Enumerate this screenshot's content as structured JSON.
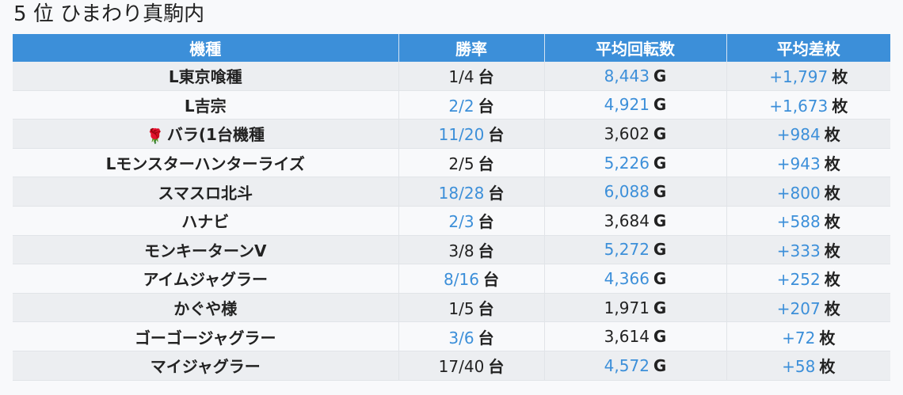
{
  "header": {
    "rank": "5",
    "rank_suffix": "位",
    "store_name": "ひまわり真駒内"
  },
  "table": {
    "columns": [
      "機種",
      "勝率",
      "平均回転数",
      "平均差枚"
    ],
    "unit_win": "台",
    "unit_spins": "G",
    "unit_diff": "枚",
    "accent_color": "#3c8fd9",
    "rows": [
      {
        "name": "L東京喰種",
        "icon": "",
        "win": "1/4",
        "win_hl": false,
        "spins": "8,443",
        "spins_hl": true,
        "diff": "+1,797",
        "diff_hl": true
      },
      {
        "name": "L吉宗",
        "icon": "",
        "win": "2/2",
        "win_hl": true,
        "spins": "4,921",
        "spins_hl": true,
        "diff": "+1,673",
        "diff_hl": true
      },
      {
        "name": "バラ(1台機種",
        "icon": "rose-icon",
        "win": "11/20",
        "win_hl": true,
        "spins": "3,602",
        "spins_hl": false,
        "diff": "+984",
        "diff_hl": true
      },
      {
        "name": "Lモンスターハンターライズ",
        "icon": "",
        "win": "2/5",
        "win_hl": false,
        "spins": "5,226",
        "spins_hl": true,
        "diff": "+943",
        "diff_hl": true
      },
      {
        "name": "スマスロ北斗",
        "icon": "",
        "win": "18/28",
        "win_hl": true,
        "spins": "6,088",
        "spins_hl": true,
        "diff": "+800",
        "diff_hl": true
      },
      {
        "name": "ハナビ",
        "icon": "",
        "win": "2/3",
        "win_hl": true,
        "spins": "3,684",
        "spins_hl": false,
        "diff": "+588",
        "diff_hl": true
      },
      {
        "name": "モンキーターンV",
        "icon": "",
        "win": "3/8",
        "win_hl": false,
        "spins": "5,272",
        "spins_hl": true,
        "diff": "+333",
        "diff_hl": true
      },
      {
        "name": "アイムジャグラー",
        "icon": "",
        "win": "8/16",
        "win_hl": true,
        "spins": "4,366",
        "spins_hl": true,
        "diff": "+252",
        "diff_hl": true
      },
      {
        "name": "かぐや様",
        "icon": "",
        "win": "1/5",
        "win_hl": false,
        "spins": "1,971",
        "spins_hl": false,
        "diff": "+207",
        "diff_hl": true
      },
      {
        "name": "ゴーゴージャグラー",
        "icon": "",
        "win": "3/6",
        "win_hl": true,
        "spins": "3,614",
        "spins_hl": false,
        "diff": "+72",
        "diff_hl": true
      },
      {
        "name": "マイジャグラー",
        "icon": "",
        "win": "17/40",
        "win_hl": false,
        "spins": "4,572",
        "spins_hl": true,
        "diff": "+58",
        "diff_hl": true
      }
    ]
  }
}
